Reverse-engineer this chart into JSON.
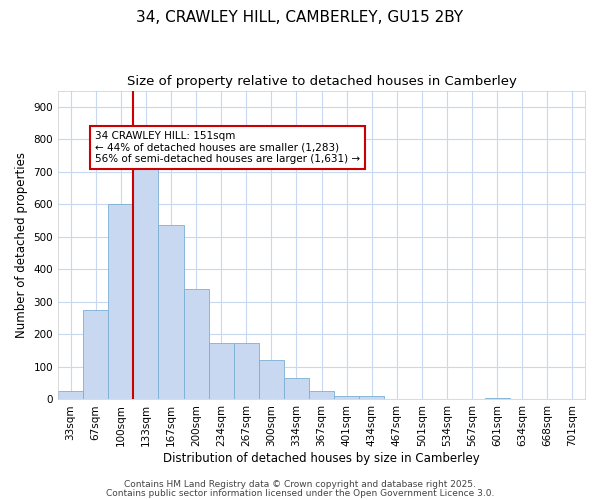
{
  "title1": "34, CRAWLEY HILL, CAMBERLEY, GU15 2BY",
  "title2": "Size of property relative to detached houses in Camberley",
  "xlabel": "Distribution of detached houses by size in Camberley",
  "ylabel": "Number of detached properties",
  "bar_labels": [
    "33sqm",
    "67sqm",
    "100sqm",
    "133sqm",
    "167sqm",
    "200sqm",
    "234sqm",
    "267sqm",
    "300sqm",
    "334sqm",
    "367sqm",
    "401sqm",
    "434sqm",
    "467sqm",
    "501sqm",
    "534sqm",
    "567sqm",
    "601sqm",
    "634sqm",
    "668sqm",
    "701sqm"
  ],
  "bar_values": [
    25,
    275,
    600,
    750,
    535,
    340,
    175,
    175,
    120,
    65,
    25,
    10,
    10,
    0,
    0,
    0,
    0,
    5,
    0,
    0,
    0
  ],
  "bar_color": "#c8d8f0",
  "bar_edge_color": "#7bafd4",
  "red_line_index": 3,
  "red_line_color": "#cc0000",
  "annotation_text": "34 CRAWLEY HILL: 151sqm\n← 44% of detached houses are smaller (1,283)\n56% of semi-detached houses are larger (1,631) →",
  "annotation_box_color": "#ffffff",
  "annotation_box_edge": "#cc0000",
  "ylim": [
    0,
    950
  ],
  "yticks": [
    0,
    100,
    200,
    300,
    400,
    500,
    600,
    700,
    800,
    900
  ],
  "background_color": "#ffffff",
  "plot_bg_color": "#ffffff",
  "grid_color": "#c8d8f0",
  "footer1": "Contains HM Land Registry data © Crown copyright and database right 2025.",
  "footer2": "Contains public sector information licensed under the Open Government Licence 3.0.",
  "title1_fontsize": 11,
  "title2_fontsize": 9.5,
  "xlabel_fontsize": 8.5,
  "ylabel_fontsize": 8.5,
  "tick_fontsize": 7.5,
  "footer_fontsize": 6.5,
  "annot_fontsize": 7.5
}
